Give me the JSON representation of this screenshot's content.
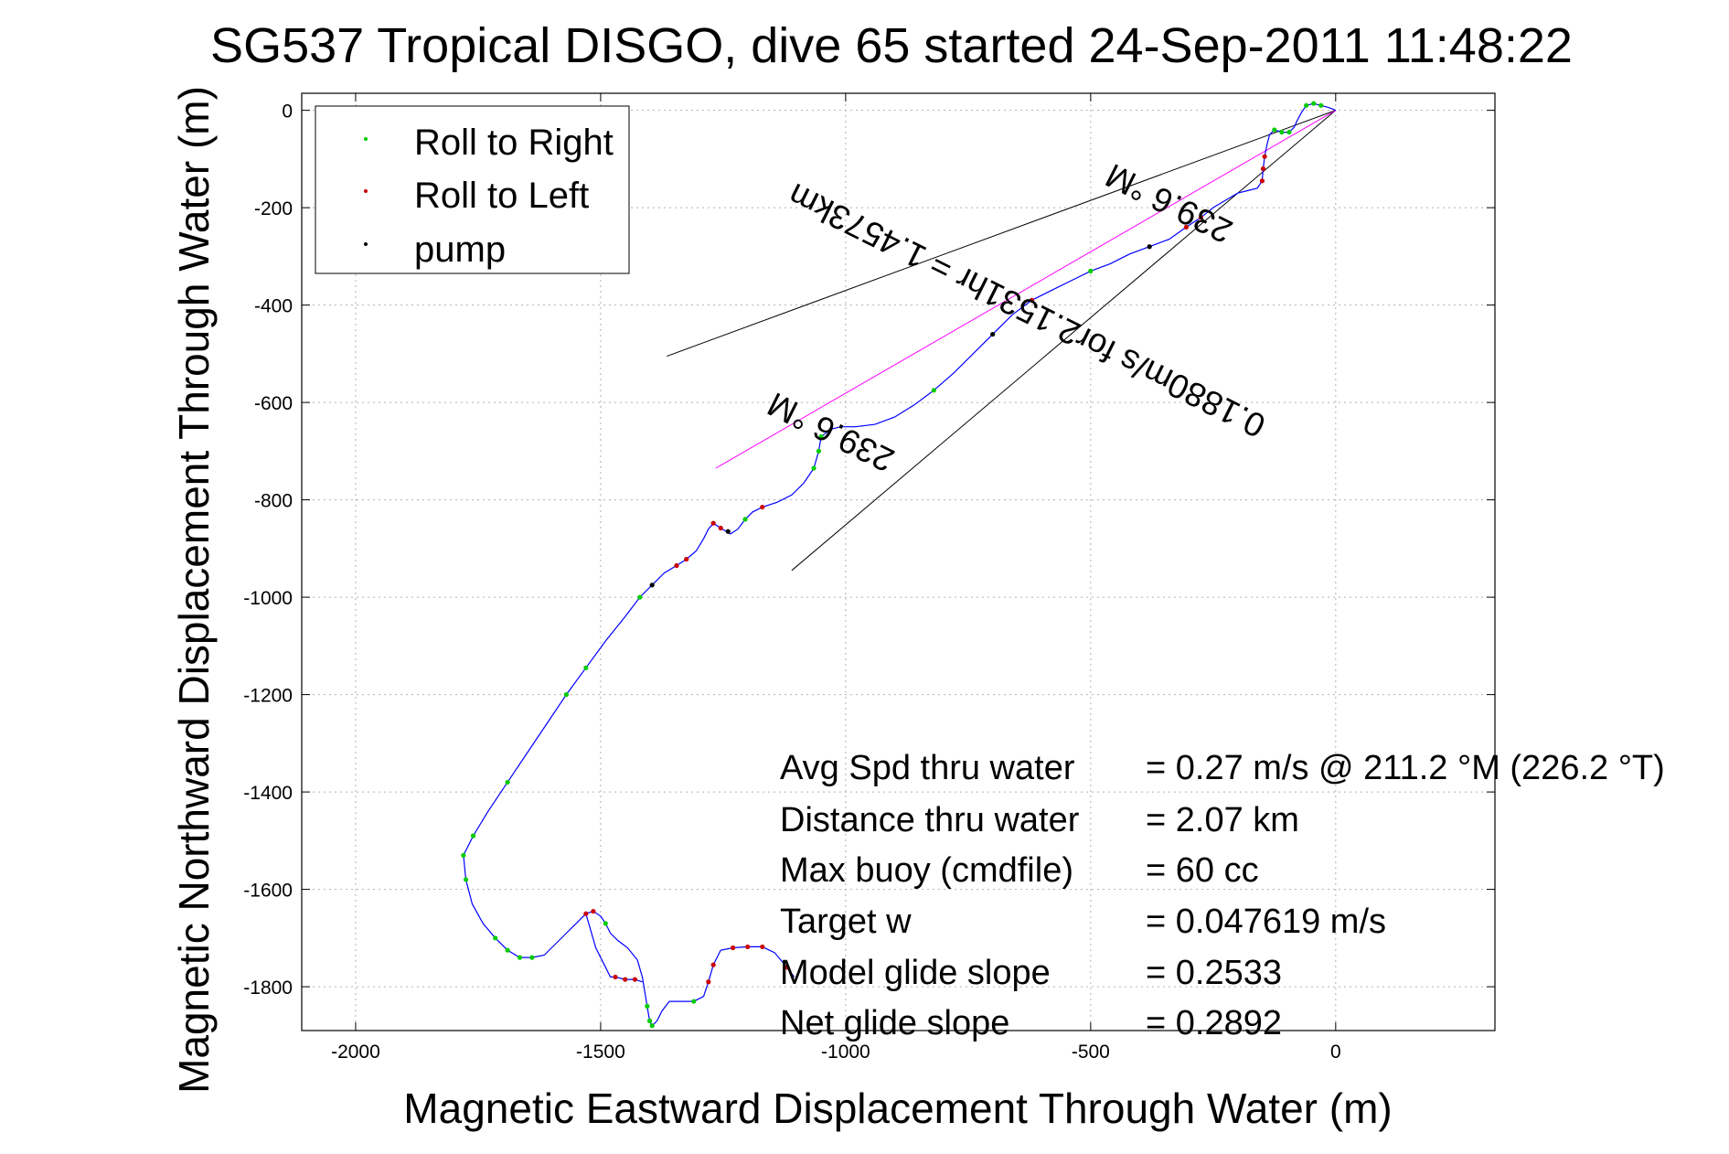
{
  "chart_data": {
    "type": "scatter",
    "title": "SG537 Tropical DISGO, dive 65 started 24-Sep-2011 11:48:22",
    "xlabel": "Magnetic Eastward Displacement Through Water (m)",
    "ylabel": "Magnetic Northward Displacement Through Water (m)",
    "xlim": [
      -2110,
      325
    ],
    "ylim": [
      -1890,
      35
    ],
    "xticks": [
      -2000,
      -1500,
      -1000,
      -500,
      0
    ],
    "xtick_labels": [
      "-2000",
      "-1500",
      "-1000",
      "-500",
      "0"
    ],
    "yticks": [
      0,
      -200,
      -400,
      -600,
      -800,
      -1000,
      -1200,
      -1400,
      -1600,
      -1800
    ],
    "ytick_labels": [
      "0",
      "-200",
      "-400",
      "-600",
      "-800",
      "-1000",
      "-1200",
      "-1400",
      "-1600",
      "-1800"
    ],
    "grid": true,
    "legend_position": "top-left",
    "legend": [
      {
        "label": "Roll to Right",
        "color": "#00cc00"
      },
      {
        "label": "Roll to Left",
        "color": "#cc0000"
      },
      {
        "label": "pump",
        "color": "#000000"
      }
    ],
    "track_color": "#0000ff",
    "track": [
      [
        0,
        0
      ],
      [
        -15,
        6
      ],
      [
        -30,
        10
      ],
      [
        -45,
        14
      ],
      [
        -60,
        10
      ],
      [
        -70,
        -5
      ],
      [
        -78,
        -20
      ],
      [
        -85,
        -35
      ],
      [
        -95,
        -45
      ],
      [
        -110,
        -45
      ],
      [
        -125,
        -40
      ],
      [
        -135,
        -50
      ],
      [
        -140,
        -70
      ],
      [
        -145,
        -95
      ],
      [
        -148,
        -120
      ],
      [
        -150,
        -145
      ],
      [
        -160,
        -160
      ],
      [
        -180,
        -165
      ],
      [
        -200,
        -170
      ],
      [
        -225,
        -185
      ],
      [
        -250,
        -200
      ],
      [
        -275,
        -220
      ],
      [
        -305,
        -240
      ],
      [
        -340,
        -265
      ],
      [
        -380,
        -280
      ],
      [
        -420,
        -295
      ],
      [
        -460,
        -315
      ],
      [
        -500,
        -330
      ],
      [
        -540,
        -350
      ],
      [
        -580,
        -370
      ],
      [
        -620,
        -390
      ],
      [
        -660,
        -420
      ],
      [
        -700,
        -460
      ],
      [
        -740,
        -500
      ],
      [
        -780,
        -540
      ],
      [
        -820,
        -575
      ],
      [
        -860,
        -605
      ],
      [
        -900,
        -630
      ],
      [
        -940,
        -645
      ],
      [
        -980,
        -650
      ],
      [
        -1010,
        -650
      ],
      [
        -1030,
        -655
      ],
      [
        -1050,
        -670
      ],
      [
        -1055,
        -700
      ],
      [
        -1065,
        -735
      ],
      [
        -1085,
        -765
      ],
      [
        -1110,
        -790
      ],
      [
        -1140,
        -805
      ],
      [
        -1170,
        -815
      ],
      [
        -1190,
        -825
      ],
      [
        -1205,
        -840
      ],
      [
        -1220,
        -860
      ],
      [
        -1235,
        -870
      ],
      [
        -1255,
        -858
      ],
      [
        -1270,
        -848
      ],
      [
        -1280,
        -860
      ],
      [
        -1290,
        -880
      ],
      [
        -1305,
        -905
      ],
      [
        -1325,
        -922
      ],
      [
        -1345,
        -935
      ],
      [
        -1370,
        -950
      ],
      [
        -1395,
        -975
      ],
      [
        -1420,
        -1000
      ],
      [
        -1450,
        -1040
      ],
      [
        -1490,
        -1090
      ],
      [
        -1530,
        -1145
      ],
      [
        -1570,
        -1200
      ],
      [
        -1610,
        -1260
      ],
      [
        -1650,
        -1320
      ],
      [
        -1690,
        -1380
      ],
      [
        -1730,
        -1440
      ],
      [
        -1760,
        -1490
      ],
      [
        -1780,
        -1530
      ],
      [
        -1775,
        -1580
      ],
      [
        -1762,
        -1630
      ],
      [
        -1740,
        -1670
      ],
      [
        -1715,
        -1700
      ],
      [
        -1690,
        -1725
      ],
      [
        -1665,
        -1740
      ],
      [
        -1640,
        -1740
      ],
      [
        -1615,
        -1735
      ],
      [
        -1600,
        -1720
      ],
      [
        -1585,
        -1705
      ],
      [
        -1570,
        -1690
      ],
      [
        -1550,
        -1670
      ],
      [
        -1530,
        -1650
      ],
      [
        -1515,
        -1645
      ],
      [
        -1500,
        -1655
      ],
      [
        -1490,
        -1670
      ],
      [
        -1480,
        -1690
      ],
      [
        -1465,
        -1705
      ],
      [
        -1445,
        -1720
      ],
      [
        -1425,
        -1745
      ],
      [
        -1415,
        -1780
      ],
      [
        -1410,
        -1810
      ],
      [
        -1405,
        -1840
      ],
      [
        -1400,
        -1870
      ],
      [
        -1395,
        -1880
      ],
      [
        -1385,
        -1870
      ],
      [
        -1375,
        -1850
      ],
      [
        -1360,
        -1830
      ],
      [
        -1340,
        -1830
      ],
      [
        -1310,
        -1830
      ],
      [
        -1290,
        -1820
      ],
      [
        -1280,
        -1790
      ],
      [
        -1270,
        -1755
      ],
      [
        -1255,
        -1725
      ],
      [
        -1230,
        -1720
      ],
      [
        -1200,
        -1718
      ],
      [
        -1170,
        -1718
      ],
      [
        -1145,
        -1730
      ],
      [
        -1120,
        -1760
      ],
      [
        -1105,
        -1780
      ]
    ],
    "roll_right": [
      [
        -30,
        10
      ],
      [
        -45,
        14
      ],
      [
        -60,
        10
      ],
      [
        -95,
        -45
      ],
      [
        -110,
        -45
      ],
      [
        -125,
        -40
      ],
      [
        -500,
        -330
      ],
      [
        -820,
        -575
      ],
      [
        -1050,
        -670
      ],
      [
        -1055,
        -700
      ],
      [
        -1065,
        -735
      ],
      [
        -1205,
        -840
      ],
      [
        -1420,
        -1000
      ],
      [
        -1530,
        -1145
      ],
      [
        -1570,
        -1200
      ],
      [
        -1690,
        -1380
      ],
      [
        -1760,
        -1490
      ],
      [
        -1780,
        -1530
      ],
      [
        -1775,
        -1580
      ],
      [
        -1715,
        -1700
      ],
      [
        -1690,
        -1725
      ],
      [
        -1665,
        -1740
      ],
      [
        -1640,
        -1740
      ],
      [
        -1490,
        -1670
      ],
      [
        -1405,
        -1840
      ],
      [
        -1400,
        -1870
      ],
      [
        -1395,
        -1880
      ],
      [
        -1310,
        -1830
      ]
    ],
    "roll_left": [
      [
        -145,
        -95
      ],
      [
        -148,
        -120
      ],
      [
        -150,
        -145
      ],
      [
        -275,
        -220
      ],
      [
        -305,
        -240
      ],
      [
        -620,
        -390
      ],
      [
        -1170,
        -815
      ],
      [
        -1255,
        -858
      ],
      [
        -1270,
        -848
      ],
      [
        -1325,
        -922
      ],
      [
        -1345,
        -935
      ],
      [
        -1530,
        -1650
      ],
      [
        -1515,
        -1645
      ],
      [
        -1470,
        -1780
      ],
      [
        -1450,
        -1785
      ],
      [
        -1430,
        -1785
      ],
      [
        -1280,
        -1790
      ],
      [
        -1270,
        -1755
      ],
      [
        -1230,
        -1720
      ],
      [
        -1200,
        -1718
      ],
      [
        -1170,
        -1718
      ],
      [
        -1120,
        -1760
      ]
    ],
    "pump": [
      [
        -380,
        -280
      ],
      [
        -700,
        -460
      ],
      [
        -1395,
        -975
      ],
      [
        -1240,
        -865
      ]
    ],
    "loop_track": [
      [
        -1530,
        -1650
      ],
      [
        -1510,
        -1720
      ],
      [
        -1490,
        -1760
      ],
      [
        -1480,
        -1780
      ],
      [
        -1470,
        -1780
      ],
      [
        -1450,
        -1785
      ],
      [
        -1430,
        -1785
      ],
      [
        -1415,
        -1790
      ]
    ],
    "heading_line": {
      "from": [
        0,
        0
      ],
      "to": [
        -1265,
        -735
      ],
      "color": "#ff00ff"
    },
    "bracket_lines": [
      {
        "from": [
          0,
          0
        ],
        "to": [
          -1365,
          -505
        ],
        "color": "#000000"
      },
      {
        "from": [
          0,
          0
        ],
        "to": [
          -1110,
          -945
        ],
        "color": "#000000"
      }
    ],
    "annotations": [
      {
        "text": "0.1880m/s for2.1531hr = 1.4573km",
        "x": -620,
        "y": -390,
        "rotation_deg": 206.5
      },
      {
        "text": "239.6 °M",
        "x": -1020,
        "y": -640,
        "rotation_deg": 206.5
      },
      {
        "text": "239.6 °M",
        "x": -330,
        "y": -170,
        "rotation_deg": 206.5
      }
    ],
    "stats": [
      {
        "label": "Avg Spd thru water",
        "value": "=  0.27 m/s @ 211.2  °M (226.2  °T)"
      },
      {
        "label": "Distance thru water",
        "value": "=  2.07 km"
      },
      {
        "label": "Max buoy (cmdfile)",
        "value": "= 60 cc"
      },
      {
        "label": "Target w",
        "value": "= 0.047619 m/s"
      },
      {
        "label": "Model glide slope",
        "value": "= 0.2533"
      },
      {
        "label": "Net glide slope",
        "value": "= 0.2892"
      }
    ]
  }
}
